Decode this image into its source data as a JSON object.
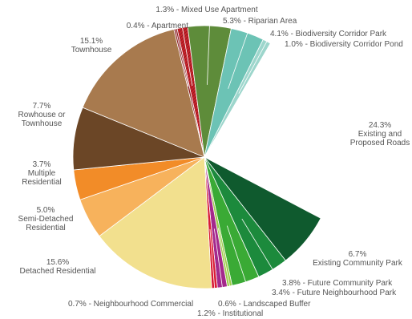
{
  "chart_data": {
    "type": "pie",
    "title": "",
    "slices": [
      {
        "name": "Mixed Use Apartment",
        "label": "1.3% - Mixed Use Apartment",
        "value": 1.3,
        "color": "#c8232c"
      },
      {
        "name": "Riparian Area",
        "label": "5.3% - Riparian Area",
        "value": 5.3,
        "color": "#5e8c3a"
      },
      {
        "name": "Biodiversity Corridor Park",
        "label": "4.1% - Biodiversity Corridor Park",
        "value": 4.1,
        "color": "#6cc3b5"
      },
      {
        "name": "Biodiversity Corridor Pond",
        "label": "1.0% - Biodiversity Corridor Pond",
        "value": 1.0,
        "color": "#9dd6cc"
      },
      {
        "name": "Existing and Proposed Roads",
        "label_lines": [
          "24.3%",
          "Existing and",
          "Proposed Roads"
        ],
        "value": 24.3,
        "color": "#ffffff"
      },
      {
        "name": "Existing Community Park",
        "label_lines": [
          "6.7%",
          "Existing Community Park"
        ],
        "value": 6.7,
        "color": "#0f5a2e"
      },
      {
        "name": "Future Community Park",
        "label": "3.8% - Future Community Park",
        "value": 3.8,
        "color": "#1c8a3c"
      },
      {
        "name": "Future Neighbourhood Park",
        "label": "3.4% - Future Neighbourhood Park",
        "value": 3.4,
        "color": "#3aaa35"
      },
      {
        "name": "Landscaped Buffer",
        "label": "0.6% - Landscaped Buffer",
        "value": 0.6,
        "color": "#9ccc4a"
      },
      {
        "name": "Institutional",
        "label": "1.2% - Institutional",
        "value": 1.2,
        "color": "#a4298c"
      },
      {
        "name": "Neighbourhood Commercial",
        "label": "0.7% - Neighbourhood Commercial",
        "value": 0.7,
        "color": "#d81b35"
      },
      {
        "name": "Detached Residential",
        "label_lines": [
          "15.6%",
          "Detached Residential"
        ],
        "value": 15.6,
        "color": "#f2e08e"
      },
      {
        "name": "Semi-Detached Residential",
        "label_lines": [
          "5.0%",
          "Semi-Detached",
          "Residential"
        ],
        "value": 5.0,
        "color": "#f7b25c"
      },
      {
        "name": "Multiple Residential",
        "label_lines": [
          "3.7%",
          "Multiple",
          "Residential"
        ],
        "value": 3.7,
        "color": "#f28c28"
      },
      {
        "name": "Rowhouse or Townhouse",
        "label_lines": [
          "7.7%",
          "Rowhouse or",
          "Townhouse"
        ],
        "value": 7.7,
        "color": "#6b4626"
      },
      {
        "name": "Townhouse",
        "label_lines": [
          "15.1%",
          "Townhouse"
        ],
        "value": 15.1,
        "color": "#a87a4e"
      },
      {
        "name": "Apartment",
        "label": "0.4% - Apartment",
        "value": 0.4,
        "color": "#8b1a1f"
      }
    ]
  }
}
